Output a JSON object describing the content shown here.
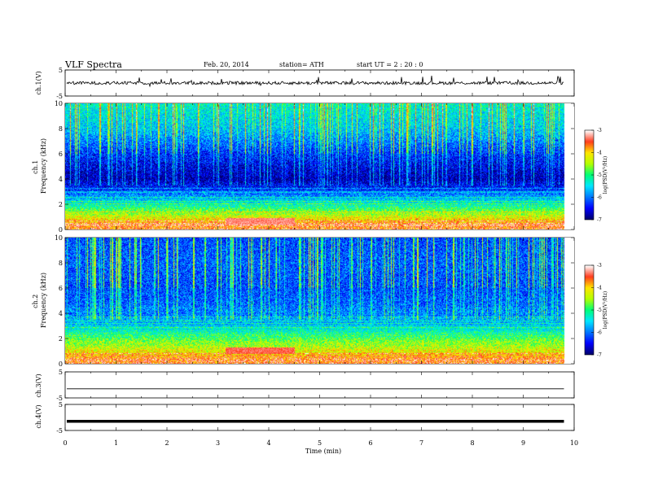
{
  "header": {
    "title": "VLF  Spectra",
    "date": "Feb. 20, 2014",
    "station": "station= ATH",
    "start": "start  UT  =   2  : 20 : 0"
  },
  "chart_data": [
    {
      "type": "line",
      "panel": "ch1-waveform",
      "ylabel": "ch.1(V)",
      "ylim": [
        -5,
        5
      ],
      "yticks": [
        "5",
        "-5"
      ],
      "xlim": [
        0,
        10
      ],
      "approx_signal": "noisy trace centered near 0 V with spikes up to about ±2 V",
      "approx_baseline_v": 0
    },
    {
      "type": "heatmap",
      "panel": "ch1-spectrogram",
      "ylabel": "ch.1\nFrequency (kHz)",
      "ylim": [
        0,
        10
      ],
      "yticks": [
        "0",
        "2",
        "4",
        "6",
        "8",
        "10"
      ],
      "xlim": [
        0,
        10
      ],
      "data_end_min": 9.8,
      "colorbar": {
        "label": "log(PSD(V²/Hz)",
        "range": [
          -7,
          -3
        ],
        "ticks": [
          "-3",
          "-4",
          "-5",
          "-6",
          "-7"
        ]
      },
      "approx_profile_log_psd": [
        {
          "freq_khz": 0.3,
          "value": -3.6
        },
        {
          "freq_khz": 1.0,
          "value": -4.3
        },
        {
          "freq_khz": 2.0,
          "value": -5.3
        },
        {
          "freq_khz": 3.0,
          "value": -6.2
        },
        {
          "freq_khz": 4.0,
          "value": -6.8
        },
        {
          "freq_khz": 6.0,
          "value": -6.3
        },
        {
          "freq_khz": 8.0,
          "value": -5.6
        },
        {
          "freq_khz": 10.0,
          "value": -5.3
        }
      ],
      "approx_events": [
        {
          "start_min": 3.15,
          "end_min": 4.5,
          "freq_khz": 0.6,
          "value": -3.3
        }
      ]
    },
    {
      "type": "heatmap",
      "panel": "ch2-spectrogram",
      "ylabel": "ch.2\nFrequency (kHz)",
      "ylim": [
        0,
        10
      ],
      "yticks": [
        "0",
        "2",
        "4",
        "6",
        "8",
        "10"
      ],
      "xlim": [
        0,
        10
      ],
      "data_end_min": 9.8,
      "colorbar": {
        "label": "log(PSD(V²/Hz)",
        "range": [
          -7,
          -3
        ],
        "ticks": [
          "-3",
          "-4",
          "-5",
          "-6",
          "-7"
        ]
      },
      "approx_profile_log_psd": [
        {
          "freq_khz": 0.3,
          "value": -3.5
        },
        {
          "freq_khz": 1.0,
          "value": -4.2
        },
        {
          "freq_khz": 2.0,
          "value": -4.8
        },
        {
          "freq_khz": 3.0,
          "value": -5.6
        },
        {
          "freq_khz": 4.0,
          "value": -6.0
        },
        {
          "freq_khz": 6.0,
          "value": -6.2
        },
        {
          "freq_khz": 8.0,
          "value": -6.1
        },
        {
          "freq_khz": 10.0,
          "value": -6.2
        }
      ],
      "approx_events": [
        {
          "start_min": 3.15,
          "end_min": 4.5,
          "freq_khz": 1.0,
          "value": -3.4
        }
      ]
    },
    {
      "type": "line",
      "panel": "ch3-waveform",
      "ylabel": "ch.3(V)",
      "ylim": [
        -5,
        5
      ],
      "yticks": [
        "5",
        "-5"
      ],
      "xlim": [
        0,
        10
      ],
      "approx_baseline_v": -1.5
    },
    {
      "type": "line",
      "panel": "ch4-waveform",
      "ylabel": "ch.4(V)",
      "ylim": [
        -5,
        5
      ],
      "yticks": [
        "5",
        "-5"
      ],
      "xlim": [
        0,
        10
      ],
      "approx_baseline_v": -1.5
    }
  ],
  "xaxis": {
    "label": "Time  (min)",
    "ticks": [
      "0",
      "1",
      "2",
      "3",
      "4",
      "5",
      "6",
      "7",
      "8",
      "9",
      "10"
    ]
  },
  "colors": {
    "colormap": [
      "#000070",
      "#0000ff",
      "#00d8ff",
      "#00ff88",
      "#ffff00",
      "#ff2020",
      "#ffffff"
    ]
  }
}
